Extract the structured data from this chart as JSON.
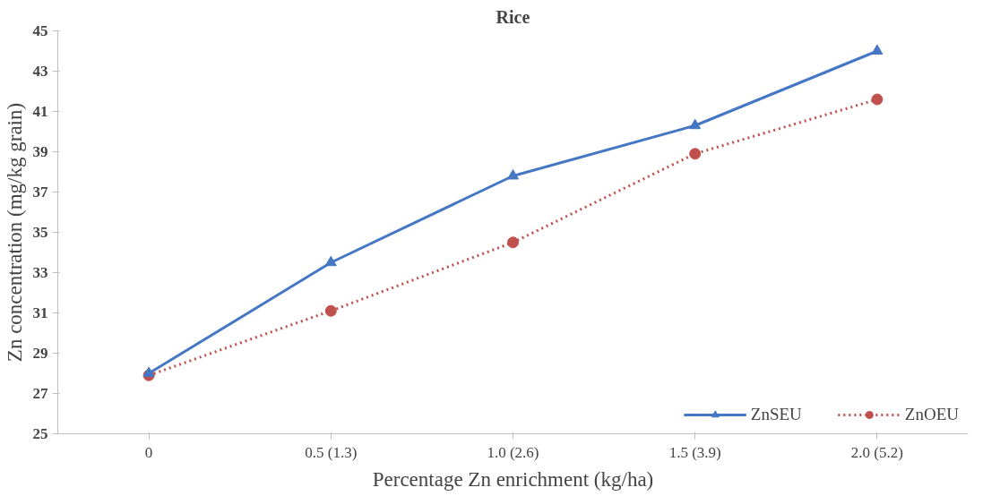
{
  "chart_data": {
    "type": "line",
    "title": "Rice",
    "xlabel": "Percentage Zn enrichment (kg/ha)",
    "ylabel": "Zn concentration (mg/kg grain)",
    "categories": [
      "0",
      "0.5 (1.3)",
      "1.0 (2.6)",
      "1.5 (3.9)",
      "2.0 (5.2)"
    ],
    "series": [
      {
        "name": "ZnSEU",
        "color": "#4577c4",
        "values": [
          28.0,
          33.5,
          37.8,
          40.3,
          44.0
        ],
        "marker": "triangle",
        "line_style": "solid"
      },
      {
        "name": "ZnOEU",
        "color": "#c0504d",
        "values": [
          27.9,
          31.1,
          34.5,
          38.9,
          41.6
        ],
        "marker": "circle",
        "line_style": "dotted"
      }
    ],
    "ylim": [
      25,
      45
    ],
    "yticks": [
      25,
      27,
      29,
      31,
      33,
      35,
      37,
      39,
      41,
      43,
      45
    ],
    "grid": false,
    "legend": "bottom right"
  }
}
